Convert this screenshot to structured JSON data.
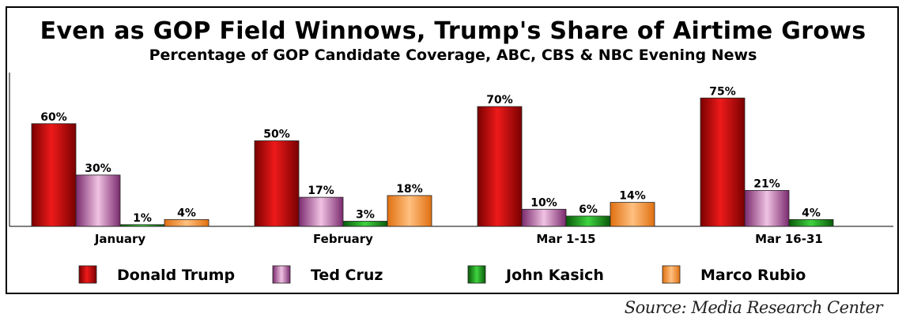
{
  "chart_data": {
    "type": "bar",
    "title": "Even as GOP Field Winnows, Trump's Share of Airtime Grows",
    "subtitle": "Percentage of GOP Candidate Coverage, ABC, CBS & NBC Evening News",
    "categories": [
      "January",
      "February",
      "Mar 1-15",
      "Mar 16-31"
    ],
    "series": [
      {
        "name": "Donald Trump",
        "values": [
          60,
          50,
          70,
          75
        ],
        "labels": [
          "60%",
          "50%",
          "70%",
          "75%"
        ],
        "color": "#cc0000"
      },
      {
        "name": "Ted Cruz",
        "values": [
          30,
          17,
          10,
          21
        ],
        "labels": [
          "30%",
          "17%",
          "10%",
          "21%"
        ],
        "color": "#b05a9e"
      },
      {
        "name": "John Kasich",
        "values": [
          1,
          3,
          6,
          4
        ],
        "labels": [
          "1%",
          "3%",
          "6%",
          "4%"
        ],
        "color": "#1a9a1a"
      },
      {
        "name": "Marco Rubio",
        "values": [
          4,
          18,
          14,
          null
        ],
        "labels": [
          "4%",
          "18%",
          "14%",
          null
        ],
        "color": "#ff9933"
      }
    ],
    "xlabel": "",
    "ylabel": "",
    "ylim": [
      0,
      100
    ],
    "grid": false,
    "legend": "bottom"
  },
  "source": "Source: Media Research Center"
}
